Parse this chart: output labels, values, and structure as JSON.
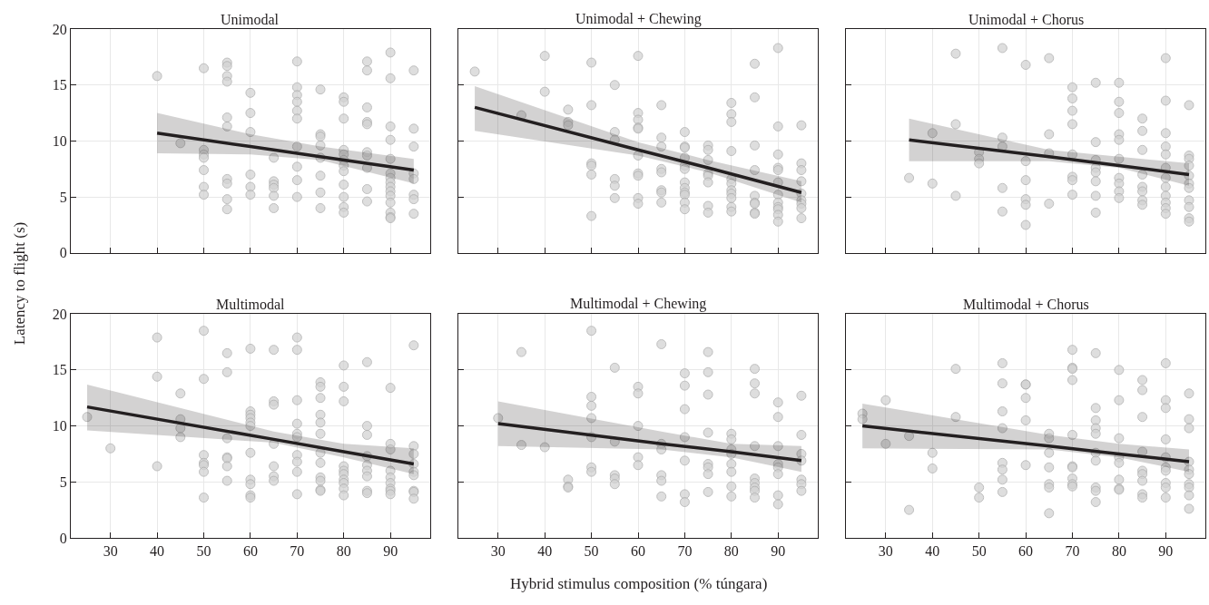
{
  "chart_data": [
    {
      "type": "scatter",
      "title": "Unimodal",
      "ylabel": "Latency to flight (s)",
      "xlim": [
        21.5,
        98.5
      ],
      "ylim": [
        0,
        20
      ],
      "xticks": [
        30,
        40,
        50,
        60,
        70,
        80,
        90
      ],
      "yticks": [
        0,
        5,
        10,
        15,
        20
      ],
      "grid": true,
      "tick_labels": "y",
      "series": [
        {
          "marker": "circle",
          "color": "#d3d3d3",
          "x": [
            40,
            45,
            50,
            50,
            50,
            50,
            50,
            50,
            50,
            55,
            55,
            55,
            55,
            55,
            55,
            55,
            55,
            55,
            55,
            60,
            60,
            60,
            60,
            60,
            60,
            65,
            65,
            65,
            65,
            65,
            65,
            70,
            70,
            70,
            70,
            70,
            70,
            70,
            70,
            70,
            70,
            75,
            75,
            75,
            75,
            75,
            75,
            75,
            75,
            80,
            80,
            80,
            80,
            80,
            80,
            80,
            80,
            80,
            80,
            80,
            80,
            85,
            85,
            85,
            85,
            85,
            85,
            85,
            85,
            85,
            85,
            90,
            90,
            90,
            90,
            90,
            90,
            90,
            90,
            90,
            90,
            90,
            90,
            90,
            90,
            90,
            95,
            95,
            95,
            95,
            95,
            95,
            95,
            95
          ],
          "values": [
            15.8,
            9.8,
            16.5,
            9.2,
            8.8,
            8.5,
            7.4,
            5.9,
            5.2,
            17.0,
            16.7,
            15.8,
            15.3,
            12.1,
            11.3,
            6.6,
            6.2,
            4.8,
            3.9,
            14.3,
            12.5,
            10.8,
            7.0,
            5.9,
            5.2,
            8.5,
            6.4,
            6.1,
            5.8,
            5.1,
            4.0,
            17.1,
            14.8,
            14.1,
            13.5,
            12.7,
            12.0,
            9.5,
            7.7,
            6.5,
            5.0,
            14.6,
            10.6,
            10.4,
            9.6,
            8.5,
            6.9,
            5.4,
            4.0,
            13.9,
            13.5,
            12.0,
            9.2,
            8.8,
            8.3,
            7.8,
            7.3,
            6.1,
            5.0,
            4.1,
            3.6,
            17.1,
            16.3,
            13.0,
            11.7,
            11.5,
            9.0,
            8.7,
            7.6,
            5.7,
            4.6,
            17.9,
            15.6,
            11.3,
            10.1,
            8.4,
            7.1,
            6.7,
            6.3,
            5.9,
            5.5,
            5.1,
            4.5,
            3.6,
            3.2,
            3.1,
            16.3,
            11.1,
            9.5,
            7.1,
            6.6,
            5.2,
            4.8,
            3.5
          ]
        },
        {
          "type": "line",
          "color": "#231f20",
          "x": [
            40,
            60,
            75,
            95
          ],
          "values": [
            10.7,
            9.5,
            8.6,
            7.4
          ],
          "lower": [
            8.9,
            8.8,
            8.3,
            6.2
          ],
          "upper": [
            12.5,
            10.6,
            9.5,
            8.4
          ]
        }
      ]
    },
    {
      "type": "scatter",
      "title": "Unimodal + Chewing",
      "xlim": [
        21.5,
        98.5
      ],
      "ylim": [
        0,
        20
      ],
      "xticks": [
        30,
        40,
        50,
        60,
        70,
        80,
        90
      ],
      "yticks": [
        0,
        5,
        10,
        15,
        20
      ],
      "grid": true,
      "tick_labels": false,
      "series": [
        {
          "marker": "circle",
          "color": "#d3d3d3",
          "x": [
            25,
            35,
            40,
            40,
            45,
            45,
            45,
            50,
            50,
            50,
            50,
            50,
            50,
            55,
            55,
            55,
            55,
            55,
            55,
            60,
            60,
            60,
            60,
            60,
            60,
            60,
            60,
            60,
            60,
            65,
            65,
            65,
            65,
            65,
            65,
            65,
            65,
            70,
            70,
            70,
            70,
            70,
            70,
            70,
            70,
            70,
            70,
            70,
            70,
            75,
            75,
            75,
            75,
            75,
            75,
            75,
            75,
            80,
            80,
            80,
            80,
            80,
            80,
            80,
            80,
            80,
            80,
            80,
            85,
            85,
            85,
            85,
            85,
            85,
            85,
            85,
            85,
            90,
            90,
            90,
            90,
            90,
            90,
            90,
            90,
            90,
            90,
            90,
            90,
            95,
            95,
            95,
            95,
            95,
            95,
            95,
            95,
            95
          ],
          "values": [
            16.2,
            12.3,
            17.6,
            14.4,
            12.8,
            11.7,
            11.4,
            17.0,
            13.2,
            8.0,
            7.8,
            7.0,
            3.3,
            15.0,
            10.8,
            10.1,
            6.6,
            6.0,
            4.9,
            17.6,
            12.5,
            11.9,
            11.2,
            11.1,
            8.7,
            7.1,
            6.9,
            4.9,
            4.4,
            13.2,
            10.3,
            9.5,
            7.5,
            7.2,
            5.6,
            5.4,
            4.5,
            10.8,
            9.5,
            9.4,
            8.5,
            7.8,
            7.5,
            6.3,
            5.8,
            5.4,
            5.2,
            4.5,
            3.9,
            9.6,
            9.2,
            8.3,
            7.1,
            6.9,
            6.3,
            4.2,
            3.6,
            13.4,
            12.4,
            11.7,
            9.1,
            6.6,
            6.2,
            5.6,
            5.3,
            4.9,
            4.1,
            3.7,
            16.9,
            13.9,
            9.6,
            7.4,
            5.1,
            4.5,
            4.4,
            3.6,
            3.5,
            18.3,
            11.3,
            8.8,
            7.6,
            7.4,
            6.3,
            5.2,
            4.5,
            4.1,
            3.9,
            3.4,
            2.8,
            11.4,
            8.0,
            7.4,
            6.4,
            5.3,
            4.7,
            4.4,
            4.0,
            3.1
          ]
        },
        {
          "type": "line",
          "color": "#231f20",
          "x": [
            25,
            60,
            75,
            95
          ],
          "values": [
            13.0,
            9.2,
            7.6,
            5.4
          ],
          "lower": [
            10.9,
            8.7,
            7.2,
            4.5
          ],
          "upper": [
            14.9,
            9.9,
            8.3,
            6.4
          ]
        }
      ]
    },
    {
      "type": "scatter",
      "title": "Unimodal + Chorus",
      "xlim": [
        21.5,
        98.5
      ],
      "ylim": [
        0,
        20
      ],
      "xticks": [
        30,
        40,
        50,
        60,
        70,
        80,
        90
      ],
      "yticks": [
        0,
        5,
        10,
        15,
        20
      ],
      "grid": true,
      "tick_labels": false,
      "series": [
        {
          "marker": "circle",
          "color": "#d3d3d3",
          "x": [
            35,
            40,
            40,
            45,
            45,
            45,
            50,
            50,
            50,
            55,
            55,
            55,
            55,
            55,
            60,
            60,
            60,
            60,
            60,
            60,
            65,
            65,
            65,
            65,
            70,
            70,
            70,
            70,
            70,
            70,
            70,
            70,
            75,
            75,
            75,
            75,
            75,
            75,
            75,
            75,
            80,
            80,
            80,
            80,
            80,
            80,
            80,
            80,
            80,
            80,
            85,
            85,
            85,
            85,
            85,
            85,
            85,
            85,
            90,
            90,
            90,
            90,
            90,
            90,
            90,
            90,
            90,
            90,
            90,
            90,
            95,
            95,
            95,
            95,
            95,
            95,
            95,
            95,
            95,
            95,
            95
          ],
          "values": [
            6.7,
            10.7,
            6.2,
            17.8,
            11.5,
            5.1,
            9.0,
            8.4,
            8.0,
            18.3,
            10.3,
            9.5,
            5.8,
            3.7,
            16.8,
            8.2,
            6.5,
            4.8,
            4.3,
            2.5,
            17.4,
            10.6,
            8.9,
            4.4,
            14.8,
            13.8,
            12.7,
            11.5,
            8.8,
            6.8,
            6.5,
            5.2,
            15.2,
            9.9,
            8.3,
            7.6,
            7.2,
            6.4,
            5.1,
            3.6,
            15.2,
            13.5,
            12.5,
            10.6,
            10.1,
            8.4,
            6.7,
            6.2,
            5.5,
            4.9,
            12.0,
            10.9,
            9.2,
            7.0,
            5.9,
            5.5,
            4.7,
            4.3,
            17.4,
            13.6,
            10.7,
            9.5,
            8.8,
            7.6,
            6.7,
            5.9,
            5.1,
            4.5,
            4.0,
            3.5,
            13.2,
            8.7,
            8.4,
            7.8,
            6.9,
            6.2,
            5.8,
            4.7,
            4.1,
            3.1,
            2.8
          ]
        },
        {
          "type": "line",
          "color": "#231f20",
          "x": [
            35,
            65,
            80,
            95
          ],
          "values": [
            10.1,
            8.6,
            7.8,
            7.0
          ],
          "lower": [
            8.2,
            8.2,
            7.6,
            6.0
          ],
          "upper": [
            12.0,
            9.2,
            8.6,
            8.0
          ]
        }
      ]
    },
    {
      "type": "scatter",
      "title": "Multimodal",
      "xlim": [
        21.5,
        98.5
      ],
      "ylim": [
        0,
        20
      ],
      "xticks": [
        30,
        40,
        50,
        60,
        70,
        80,
        90
      ],
      "yticks": [
        0,
        5,
        10,
        15,
        20
      ],
      "grid": true,
      "series": [
        {
          "marker": "circle",
          "color": "#d3d3d3",
          "x": [
            25,
            30,
            40,
            40,
            40,
            45,
            45,
            45,
            45,
            50,
            50,
            50,
            50,
            50,
            50,
            50,
            55,
            55,
            55,
            55,
            55,
            55,
            55,
            60,
            60,
            60,
            60,
            60,
            60,
            60,
            60,
            60,
            60,
            60,
            65,
            65,
            65,
            65,
            65,
            65,
            65,
            70,
            70,
            70,
            70,
            70,
            70,
            70,
            70,
            70,
            70,
            75,
            75,
            75,
            75,
            75,
            75,
            75,
            75,
            75,
            75,
            75,
            75,
            80,
            80,
            80,
            80,
            80,
            80,
            80,
            80,
            80,
            80,
            85,
            85,
            85,
            85,
            85,
            85,
            85,
            85,
            85,
            90,
            90,
            90,
            90,
            90,
            90,
            90,
            90,
            90,
            95,
            95,
            95,
            95,
            95,
            95,
            95,
            95,
            95
          ],
          "values": [
            10.8,
            8.0,
            17.9,
            14.4,
            6.4,
            12.9,
            10.6,
            9.8,
            9.0,
            18.5,
            14.2,
            7.4,
            6.7,
            6.5,
            5.9,
            3.6,
            16.5,
            14.8,
            8.9,
            7.2,
            7.1,
            6.4,
            5.1,
            16.9,
            11.3,
            11.0,
            10.7,
            10.3,
            10.0,
            7.6,
            5.2,
            4.8,
            3.8,
            3.6,
            16.8,
            12.2,
            11.9,
            8.4,
            6.4,
            5.5,
            5.1,
            17.9,
            16.8,
            12.3,
            10.2,
            9.3,
            9.0,
            7.4,
            6.8,
            5.9,
            3.9,
            13.9,
            13.5,
            12.5,
            11.0,
            10.3,
            9.3,
            7.6,
            6.7,
            5.4,
            5.1,
            4.3,
            4.2,
            15.4,
            13.5,
            12.2,
            6.4,
            6.0,
            5.7,
            5.2,
            4.9,
            4.4,
            3.8,
            15.7,
            10.0,
            9.2,
            7.3,
            6.5,
            6.0,
            5.5,
            4.2,
            4.0,
            13.4,
            8.4,
            7.9,
            6.0,
            5.4,
            4.9,
            4.4,
            4.2,
            3.9,
            17.2,
            8.2,
            7.5,
            6.6,
            5.9,
            5.6,
            4.2,
            4.1,
            3.5
          ]
        },
        {
          "type": "line",
          "color": "#231f20",
          "x": [
            25,
            65,
            80,
            95
          ],
          "values": [
            11.7,
            8.8,
            7.7,
            6.6
          ],
          "lower": [
            9.6,
            8.5,
            7.2,
            5.7
          ],
          "upper": [
            13.7,
            9.5,
            8.4,
            8.0
          ]
        }
      ]
    },
    {
      "type": "scatter",
      "title": "Multimodal + Chewing",
      "xlabel": "Hybrid stimulus composition (% túngara)",
      "xlim": [
        21.5,
        98.5
      ],
      "ylim": [
        0,
        20
      ],
      "xticks": [
        30,
        40,
        50,
        60,
        70,
        80,
        90
      ],
      "yticks": [
        0,
        5,
        10,
        15,
        20
      ],
      "grid": true,
      "tick_labels": "x",
      "series": [
        {
          "marker": "circle",
          "color": "#d3d3d3",
          "x": [
            30,
            35,
            35,
            40,
            45,
            45,
            45,
            50,
            50,
            50,
            50,
            50,
            50,
            50,
            55,
            55,
            55,
            55,
            55,
            60,
            60,
            60,
            60,
            60,
            65,
            65,
            65,
            65,
            65,
            65,
            70,
            70,
            70,
            70,
            70,
            70,
            70,
            75,
            75,
            75,
            75,
            75,
            75,
            75,
            75,
            80,
            80,
            80,
            80,
            80,
            80,
            80,
            80,
            85,
            85,
            85,
            85,
            85,
            85,
            85,
            85,
            85,
            90,
            90,
            90,
            90,
            90,
            90,
            90,
            90,
            95,
            95,
            95,
            95,
            95,
            95,
            95
          ],
          "values": [
            10.7,
            16.6,
            8.3,
            8.1,
            5.2,
            4.6,
            4.5,
            18.5,
            12.6,
            11.8,
            10.7,
            9.0,
            6.3,
            5.9,
            15.2,
            8.6,
            5.6,
            5.3,
            4.8,
            13.5,
            12.9,
            10.0,
            7.2,
            6.5,
            17.3,
            8.4,
            7.9,
            5.6,
            5.1,
            3.7,
            14.7,
            13.6,
            11.5,
            9.0,
            6.9,
            3.9,
            3.2,
            16.6,
            14.8,
            12.8,
            9.4,
            6.6,
            6.3,
            5.7,
            4.1,
            9.3,
            8.8,
            7.9,
            7.5,
            6.6,
            5.9,
            4.6,
            3.7,
            15.1,
            13.8,
            12.9,
            8.2,
            5.3,
            4.9,
            4.5,
            4.2,
            3.6,
            12.1,
            10.8,
            8.2,
            6.6,
            6.3,
            5.7,
            3.8,
            3.0,
            12.7,
            9.2,
            7.5,
            6.9,
            5.2,
            4.8,
            4.2
          ]
        },
        {
          "type": "line",
          "color": "#231f20",
          "x": [
            30,
            65,
            80,
            95
          ],
          "values": [
            10.2,
            8.4,
            7.7,
            6.9
          ],
          "lower": [
            8.2,
            7.9,
            7.2,
            5.9
          ],
          "upper": [
            12.2,
            9.5,
            8.4,
            8.2
          ]
        }
      ]
    },
    {
      "type": "scatter",
      "title": "Multimodal + Chorus",
      "xlim": [
        21.5,
        98.5
      ],
      "ylim": [
        0,
        20
      ],
      "xticks": [
        30,
        40,
        50,
        60,
        70,
        80,
        90
      ],
      "yticks": [
        0,
        5,
        10,
        15,
        20
      ],
      "grid": true,
      "tick_labels": "x",
      "series": [
        {
          "marker": "circle",
          "color": "#d3d3d3",
          "x": [
            25,
            25,
            30,
            30,
            35,
            35,
            40,
            40,
            45,
            45,
            50,
            50,
            55,
            55,
            55,
            55,
            55,
            55,
            55,
            55,
            60,
            60,
            60,
            60,
            60,
            65,
            65,
            65,
            65,
            65,
            65,
            65,
            70,
            70,
            70,
            70,
            70,
            70,
            70,
            70,
            70,
            70,
            75,
            75,
            75,
            75,
            75,
            75,
            75,
            75,
            75,
            75,
            80,
            80,
            80,
            80,
            80,
            80,
            80,
            80,
            85,
            85,
            85,
            85,
            85,
            85,
            85,
            85,
            85,
            90,
            90,
            90,
            90,
            90,
            90,
            90,
            90,
            90,
            90,
            95,
            95,
            95,
            95,
            95,
            95,
            95,
            95,
            95,
            95
          ],
          "values": [
            11.1,
            10.6,
            12.3,
            8.4,
            9.1,
            2.5,
            7.6,
            6.2,
            15.1,
            10.8,
            4.5,
            3.6,
            15.6,
            13.8,
            11.3,
            9.8,
            6.7,
            6.1,
            5.2,
            4.1,
            13.7,
            13.7,
            12.5,
            10.5,
            6.5,
            9.3,
            8.9,
            7.6,
            6.3,
            4.8,
            4.5,
            2.2,
            16.8,
            15.2,
            15.1,
            14.1,
            9.2,
            6.4,
            6.3,
            5.3,
            4.8,
            4.6,
            16.5,
            11.6,
            10.5,
            9.8,
            9.3,
            7.6,
            6.9,
            4.5,
            4.2,
            3.2,
            15.0,
            12.3,
            8.9,
            7.2,
            6.7,
            5.2,
            4.4,
            4.3,
            14.1,
            13.2,
            10.8,
            7.7,
            6.0,
            5.7,
            5.1,
            3.9,
            3.6,
            15.6,
            12.3,
            11.6,
            8.8,
            7.2,
            6.3,
            6.0,
            4.9,
            4.5,
            3.6,
            12.9,
            10.6,
            9.8,
            6.8,
            6.1,
            5.7,
            4.8,
            4.5,
            3.8,
            2.6
          ]
        },
        {
          "type": "line",
          "color": "#231f20",
          "x": [
            25,
            65,
            80,
            95
          ],
          "values": [
            10.0,
            8.2,
            7.5,
            6.8
          ],
          "lower": [
            8.0,
            7.9,
            7.2,
            5.9
          ],
          "upper": [
            12.0,
            9.2,
            8.4,
            7.9
          ]
        }
      ]
    }
  ]
}
